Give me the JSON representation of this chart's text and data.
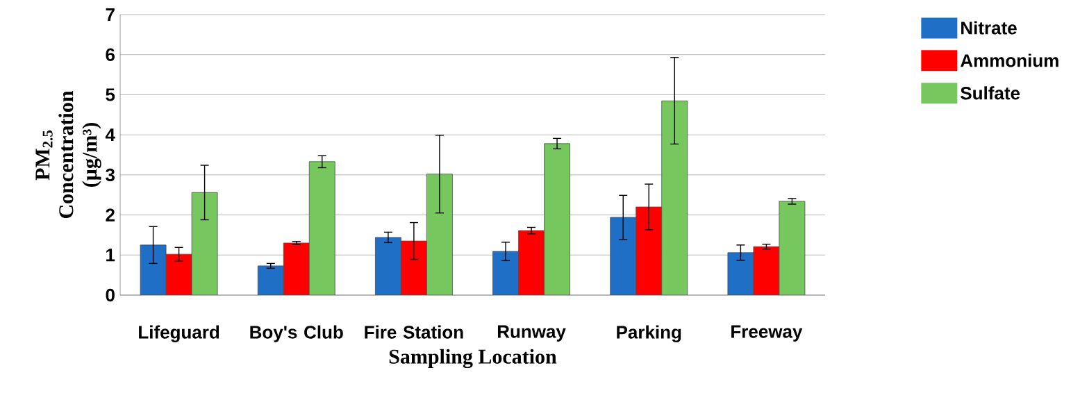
{
  "chart_data": {
    "type": "bar",
    "xlabel": "Sampling Location",
    "ylabel": "PM$_{2.5}$ Concentration (µg/m³)",
    "categories": [
      "Lifeguard",
      "Boy's Club",
      "Fire Station",
      "Runway",
      "Parking",
      "Freeway"
    ],
    "series": [
      {
        "name": "Nitrate",
        "color": "#1f6fc6",
        "values": [
          1.25,
          0.73,
          1.44,
          1.09,
          1.94,
          1.06
        ],
        "errors": [
          0.46,
          0.06,
          0.13,
          0.23,
          0.55,
          0.19
        ]
      },
      {
        "name": "Ammonium",
        "color": "#ff0000",
        "values": [
          1.02,
          1.3,
          1.35,
          1.61,
          2.2,
          1.21
        ],
        "errors": [
          0.17,
          0.04,
          0.46,
          0.08,
          0.57,
          0.06
        ]
      },
      {
        "name": "Sulfate",
        "color": "#77c75f",
        "values": [
          2.56,
          3.33,
          3.02,
          3.78,
          4.85,
          2.34
        ],
        "errors": [
          0.68,
          0.15,
          0.97,
          0.13,
          1.08,
          0.07
        ]
      }
    ],
    "ylim": [
      0,
      7
    ],
    "yticks": [
      0,
      1,
      2,
      3,
      4,
      5,
      6,
      7
    ],
    "grid": "y",
    "legend": "top right"
  }
}
